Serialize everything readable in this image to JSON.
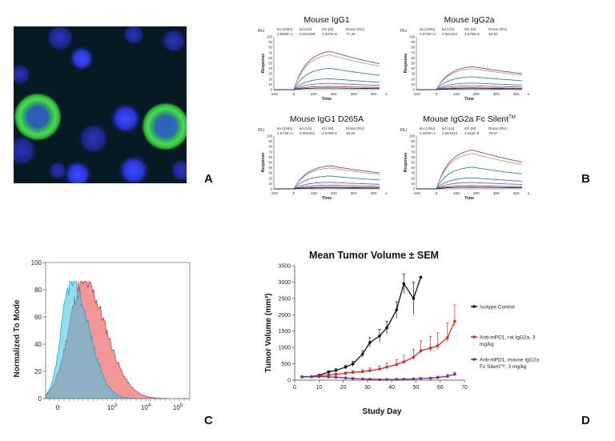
{
  "panel_labels": {
    "a": "A",
    "b": "B",
    "c": "C",
    "d": "D"
  },
  "micrograph": {
    "background": "#071a24",
    "nucleus_color": "#2b3ae0",
    "membrane_color": "#39d844"
  },
  "spr": {
    "ru_label": "RU",
    "kinetic_headers": [
      "ka (1/Ms)",
      "kd (1/s)",
      "KD (M)",
      "Rmax (RU)"
    ],
    "ylabel": "Response",
    "xlabel": "Time",
    "x_unit": "s",
    "x_ticks": [
      "-100",
      "0",
      "100",
      "200",
      "300",
      "400"
    ],
    "y_ticks": [
      "0",
      "10",
      "20",
      "30",
      "40",
      "50",
      "60",
      "70",
      "80",
      "90",
      "100"
    ],
    "sensorgrams": [
      {
        "title": "Mouse IgG1",
        "ka": "2.899E+4",
        "kd": "0.001309",
        "KD": "4.497E-8",
        "Rmax": "77.40"
      },
      {
        "title": "Mouse IgG2a",
        "ka": "2.674E+4",
        "kd": "0.001224",
        "KD": "4.576E-8",
        "Rmax": "46.80"
      },
      {
        "title": "Mouse IgG1 D265A",
        "ka": "2.674E+4",
        "kd": "0.001224",
        "KD": "4.576E-8",
        "Rmax": "46.80"
      },
      {
        "title": "Mouse IgG2a Fc Silent",
        "title_sup": "TM",
        "ka": "2.697E+4",
        "kd": "0.001244",
        "KD": "4.611E-8",
        "Rmax": "78.87"
      }
    ],
    "curve_colors": [
      "#8d3fa5",
      "#b9a06c",
      "#2b8a8a",
      "#3a7bc0",
      "#d23bb7",
      "#555555",
      "#222222"
    ]
  },
  "flow": {
    "ylabel": "Normalized To Mode",
    "y_ticks": [
      "0",
      "20",
      "40",
      "60",
      "80",
      "100"
    ],
    "x_tick_labels": [
      {
        "base": "0",
        "exp": ""
      },
      {
        "base": "10",
        "exp": "3"
      },
      {
        "base": "10",
        "exp": "4"
      },
      {
        "base": "10",
        "exp": "5"
      }
    ],
    "colors": {
      "cyan": "#38c4e8",
      "red": "#ec5f63",
      "overlap": "#8fa2b6"
    }
  },
  "chart_data": {
    "type": "line",
    "title": "Mean Tumor Volume ± SEM",
    "xlabel": "Study Day",
    "ylabel": "Tumor Volume (mm³)",
    "xlim": [
      0,
      70
    ],
    "ylim": [
      0,
      3500
    ],
    "x_ticks": [
      0,
      10,
      20,
      30,
      40,
      50,
      60,
      70
    ],
    "y_ticks": [
      0,
      500,
      1000,
      1500,
      2000,
      2500,
      3000,
      3500
    ],
    "series": [
      {
        "name": "Isotype Control",
        "color": "#111111",
        "x": [
          3,
          7,
          10,
          14,
          17,
          21,
          24,
          28,
          31,
          35,
          38,
          42,
          45,
          49
        ],
        "y": [
          100,
          110,
          150,
          250,
          300,
          400,
          500,
          800,
          1150,
          1350,
          1600,
          2150,
          2950,
          2500
        ],
        "err": [
          20,
          20,
          30,
          40,
          50,
          60,
          80,
          100,
          150,
          200,
          200,
          250,
          300,
          500
        ],
        "extra_points": [
          {
            "x": 52,
            "y": 3150
          }
        ]
      },
      {
        "name": "Anti-mPD1, rat IgG2a, 3 mg/kg",
        "color": "#e22626",
        "x": [
          3,
          7,
          10,
          14,
          17,
          21,
          24,
          28,
          31,
          35,
          38,
          42,
          45,
          49,
          52,
          56,
          59,
          63,
          66
        ],
        "y": [
          100,
          110,
          130,
          160,
          180,
          210,
          240,
          260,
          290,
          340,
          400,
          480,
          560,
          700,
          900,
          980,
          1050,
          1300,
          1800
        ],
        "err": [
          20,
          20,
          25,
          30,
          35,
          40,
          50,
          60,
          80,
          100,
          120,
          150,
          200,
          250,
          300,
          350,
          400,
          450,
          500
        ]
      },
      {
        "name": "Anti-mPD1, mouse IgG2a Fc Silent™, 3 mg/kg",
        "color": "#7b2a90",
        "x": [
          3,
          7,
          10,
          14,
          17,
          21,
          24,
          28,
          31,
          35,
          38,
          42,
          45,
          49,
          52,
          56,
          59,
          63,
          66
        ],
        "y": [
          100,
          105,
          110,
          100,
          90,
          70,
          50,
          40,
          30,
          20,
          20,
          25,
          30,
          40,
          50,
          60,
          80,
          120,
          180
        ],
        "err": [
          15,
          15,
          15,
          15,
          15,
          12,
          10,
          10,
          10,
          10,
          10,
          12,
          15,
          20,
          25,
          30,
          40,
          50,
          60
        ]
      }
    ],
    "legend": [
      {
        "label": "Isotype Control"
      },
      {
        "label": "Anti-mPD1, rat IgG2a, 3",
        "label2": "mg/kg"
      },
      {
        "label": "Anti-mPD1, mouse IgG2a",
        "label2": "Fc Silent™, 3 mg/kg"
      }
    ]
  }
}
